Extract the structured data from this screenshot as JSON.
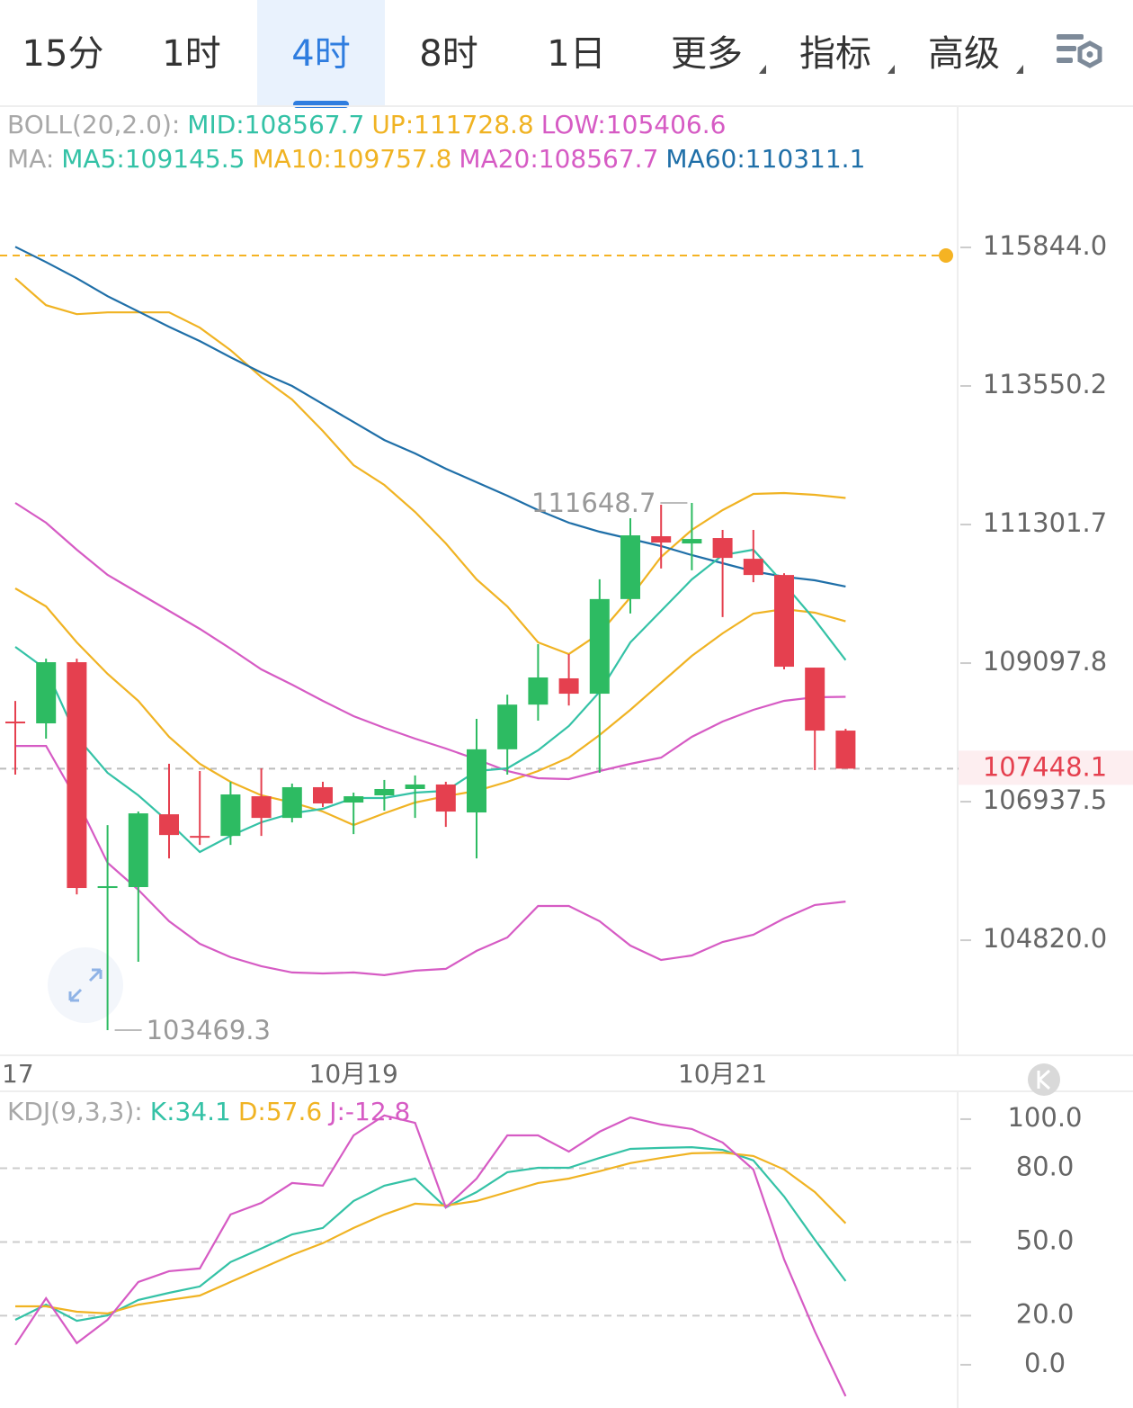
{
  "toolbar": {
    "tabs": [
      {
        "label": "15分"
      },
      {
        "label": "1时"
      },
      {
        "label": "4时",
        "active": true
      },
      {
        "label": "8时"
      },
      {
        "label": "1日"
      },
      {
        "label": "更多",
        "dropdown": true
      },
      {
        "label": "指标",
        "dropdown": true
      },
      {
        "label": "高级",
        "dropdown": true
      }
    ]
  },
  "chart_data": [
    {
      "type": "candlestick",
      "log_scale": true,
      "legend_rows": [
        [
          {
            "text": "BOLL(20,2.0):",
            "color": "#a8a8a8"
          },
          {
            "text": "MID:108567.7",
            "color": "#34c2a6"
          },
          {
            "text": "UP:111728.8",
            "color": "#f0b323"
          },
          {
            "text": "LOW:105406.6",
            "color": "#d65bc4"
          }
        ],
        [
          {
            "text": "MA:",
            "color": "#a8a8a8"
          },
          {
            "text": "MA5:109145.5",
            "color": "#34c2a6"
          },
          {
            "text": "MA10:109757.8",
            "color": "#f0b323"
          },
          {
            "text": "MA20:108567.7",
            "color": "#d65bc4"
          },
          {
            "text": "MA60:110311.1",
            "color": "#1f6fa8"
          }
        ]
      ],
      "edge_label": "17",
      "categories": [
        null,
        null,
        null,
        null,
        null,
        null,
        null,
        null,
        null,
        null,
        null,
        "10月19",
        null,
        null,
        null,
        null,
        null,
        null,
        null,
        null,
        null,
        null,
        null,
        "10月21",
        null,
        null,
        null,
        null
      ],
      "open": [
        108181,
        108153,
        109112,
        105613,
        105627,
        106743,
        106410,
        106410,
        107021,
        106687,
        107161,
        106924,
        107035,
        107133,
        107203,
        106771,
        107749,
        108446,
        108858,
        108617,
        110111,
        111114,
        110998,
        111085,
        110753,
        110494,
        109027,
        108040
      ],
      "high": [
        108503,
        109168,
        109168,
        106576,
        106785,
        107524,
        107412,
        107245,
        107454,
        107217,
        107245,
        107077,
        107273,
        107343,
        107245,
        108223,
        108601,
        109396,
        109240,
        110426,
        111403,
        111620,
        111648.7,
        111215,
        111215,
        110522,
        109027,
        108068
      ],
      "low": [
        107356,
        107914,
        105516,
        103469.3,
        104494,
        106065,
        106272,
        106272,
        106410,
        106618,
        106854,
        106438,
        106799,
        106687,
        106549,
        106065,
        107356,
        108195,
        108432,
        107384,
        109882,
        110598,
        110569,
        109825,
        110379,
        108999,
        107426,
        107448.1
      ],
      "close": [
        108153,
        109112,
        105613,
        105641,
        106757,
        106424,
        106383,
        107049,
        106687,
        107161,
        106910,
        107021,
        107133,
        107203,
        106785,
        107749,
        108446,
        108872,
        108617,
        110111,
        111128,
        111013,
        111070,
        110767,
        110494,
        109041,
        108040,
        107448.1
      ],
      "up_color": "#2dbb62",
      "down_color": "#e5404f",
      "high_marker": 22,
      "low_marker": 3,
      "overlays": [
        {
          "color": "#f0b323",
          "values": [
            115329,
            114882,
            114733,
            114763,
            114763,
            114763,
            114510,
            114139,
            113697,
            113328,
            112815,
            112260,
            111940,
            111504,
            110999,
            110424,
            109995,
            109425,
            109240,
            109567,
            110138,
            110783,
            111215,
            111533,
            111794,
            111809,
            111780,
            111728.8
          ]
        },
        {
          "color": "#f0b323",
          "values": [
            110281,
            109995,
            109425,
            108928,
            108505,
            107943,
            107523,
            107244,
            107036,
            106924,
            106785,
            106578,
            106758,
            106924,
            107021,
            107105,
            107244,
            107412,
            107620,
            107971,
            108364,
            108787,
            109212,
            109567,
            109880,
            109952,
            109895,
            109757.8
          ]
        },
        {
          "color": "#1f6fa8",
          "values": [
            115854,
            115599,
            115329,
            115031,
            114778,
            114525,
            114288,
            114022,
            113770,
            113550,
            113254,
            112961,
            112668,
            112450,
            112202,
            111983,
            111765,
            111533,
            111331,
            111186,
            111071,
            110956,
            110812,
            110683,
            110553,
            110467,
            110410,
            110311.1
          ]
        },
        {
          "color": "#d65bc4",
          "values": [
            111650,
            111331,
            110898,
            110496,
            110209,
            109923,
            109638,
            109325,
            108999,
            108759,
            108505,
            108266,
            108083,
            107915,
            107761,
            107593,
            107412,
            107300,
            107286,
            107412,
            107523,
            107620,
            107943,
            108181,
            108364,
            108505,
            108562,
            108567.7
          ]
        },
        {
          "color": "#d65bc4",
          "values": [
            107802,
            107802,
            106966,
            105998,
            105586,
            105108,
            104767,
            104564,
            104428,
            104333,
            104319,
            104333,
            104293,
            104360,
            104387,
            104659,
            104862,
            105339,
            105339,
            105108,
            104739,
            104522,
            104590,
            104794,
            104903,
            105149,
            105354,
            105406.6
          ]
        },
        {
          "color": "#34c2a6",
          "values": [
            109354,
            108999,
            107943,
            107384,
            107036,
            106619,
            106163,
            106412,
            106619,
            106758,
            106827,
            106994,
            106994,
            107077,
            107105,
            107412,
            107453,
            107733,
            108111,
            108646,
            109425,
            109923,
            110424,
            110812,
            110898,
            110352,
            109780,
            109145.5
          ]
        }
      ],
      "alert_line": {
        "value": 115709,
        "color": "#f5b323"
      },
      "ylim": [
        103093,
        118230
      ],
      "yticks": [
        {
          "value": 115844,
          "label": "115844.0"
        },
        113550.2,
        111301.7,
        109097.8,
        106937.5,
        {
          "value": 104820,
          "label": "104820.0"
        }
      ]
    },
    {
      "type": "line",
      "legend_rows": [
        [
          {
            "text": "KDJ(9,3,3):",
            "color": "#a8a8a8"
          },
          {
            "text": "K:34.1",
            "color": "#34c2a6"
          },
          {
            "text": "D:57.6",
            "color": "#f0b323"
          },
          {
            "text": "J:-12.8",
            "color": "#d65bc4"
          }
        ]
      ],
      "series": [
        {
          "color": "#34c2a6",
          "values": [
            18.3,
            24.5,
            17.9,
            20.1,
            26.4,
            29.3,
            31.9,
            41.8,
            47.3,
            53.1,
            55.7,
            66.7,
            72.9,
            75.8,
            64.1,
            70.3,
            78.4,
            80.2,
            80.2,
            84.2,
            87.9,
            88.3,
            88.6,
            87.5,
            83.2,
            68.5,
            50.9,
            34.1
          ]
        },
        {
          "color": "#f0b323",
          "values": [
            23.8,
            23.8,
            21.6,
            20.9,
            24.5,
            26.4,
            28.2,
            33.7,
            39.2,
            44.7,
            49.5,
            55.7,
            61.2,
            65.6,
            64.8,
            66.7,
            70.3,
            74.0,
            75.8,
            78.8,
            82.1,
            84.2,
            86.1,
            86.4,
            85.0,
            79.5,
            70.3,
            57.6
          ]
        },
        {
          "color": "#d65bc4",
          "values": [
            8.1,
            27.1,
            8.8,
            18.3,
            33.7,
            38.1,
            39.2,
            61.2,
            65.9,
            74.0,
            72.9,
            93.4,
            101.5,
            98.5,
            64.1,
            75.8,
            93.4,
            93.4,
            86.8,
            94.9,
            100.7,
            97.8,
            96.0,
            90.5,
            79.5,
            42.9,
            13.6,
            -12.8
          ]
        }
      ],
      "ylim": [
        -17.6,
        110.6
      ],
      "yticks": [
        {
          "value": 100,
          "label": "100.0"
        },
        {
          "value": 80,
          "label": "80.0",
          "grid": true
        },
        {
          "value": 50,
          "label": "50.0",
          "grid": true
        },
        {
          "value": 20,
          "label": "20.0",
          "grid": true
        },
        {
          "value": 0,
          "label": "0.0"
        }
      ]
    }
  ]
}
